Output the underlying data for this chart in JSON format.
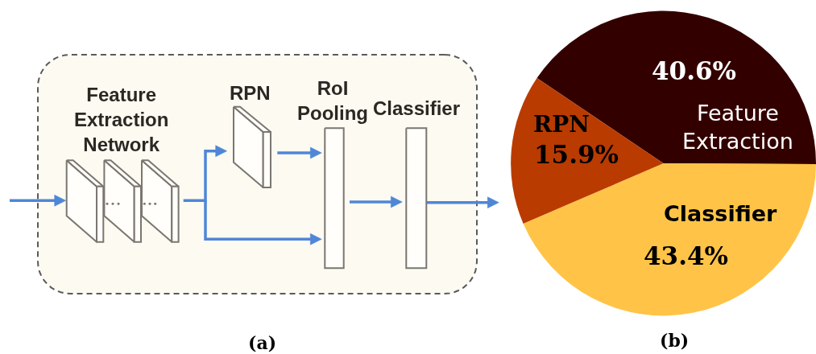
{
  "chart_data": [
    {
      "type": "other",
      "annotations": [
        "Feature Extraction Network",
        "RPN",
        "RoI Pooling",
        "Classifier",
        "(a)"
      ]
    },
    {
      "type": "pie",
      "categories": [
        "Feature Extraction",
        "Classifier",
        "RPN"
      ],
      "values": [
        40.6,
        43.4,
        15.9
      ],
      "colors": [
        "#330000",
        "#ffc447",
        "#b93b00"
      ],
      "value_labels": [
        "40.6%",
        "43.4%",
        "15.9%"
      ],
      "legend": false,
      "annotations": [
        "(b)"
      ]
    }
  ]
}
